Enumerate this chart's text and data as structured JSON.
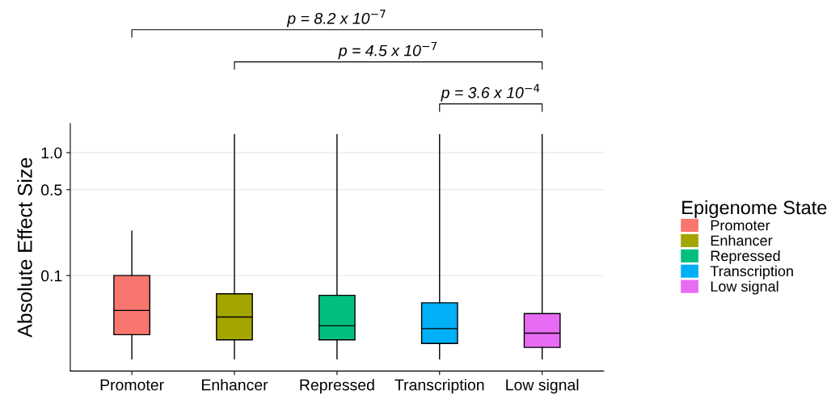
{
  "chart_data": {
    "type": "box",
    "ylabel": "Absolute Effect Size",
    "legend_title": "Epigenome State",
    "legend": "right",
    "log": "y",
    "grid": "y",
    "categories": [
      "Promoter",
      "Enhancer",
      "Repressed",
      "Transcription",
      "Low signal"
    ],
    "series": [
      {
        "name": "Promoter",
        "color": "#f8766d",
        "boxes": [
          {
            "low": 0.021,
            "q1": 0.033,
            "median": 0.052,
            "q3": 0.1,
            "high": 0.23
          },
          null,
          null,
          null,
          null
        ]
      },
      {
        "name": "Enhancer",
        "color": "#a3a500",
        "boxes": [
          null,
          {
            "low": 0.021,
            "q1": 0.03,
            "median": 0.046,
            "q3": 0.071,
            "high": 1.4
          },
          null,
          null,
          null
        ]
      },
      {
        "name": "Repressed",
        "color": "#00bf7d",
        "boxes": [
          null,
          null,
          {
            "low": 0.021,
            "q1": 0.03,
            "median": 0.039,
            "q3": 0.069,
            "high": 1.4
          },
          null,
          null
        ]
      },
      {
        "name": "Transcription",
        "color": "#00b0f6",
        "boxes": [
          null,
          null,
          null,
          {
            "low": 0.021,
            "q1": 0.028,
            "median": 0.037,
            "q3": 0.06,
            "high": 1.4
          },
          null
        ]
      },
      {
        "name": "Low signal",
        "color": "#e76bf3",
        "boxes": [
          null,
          null,
          null,
          null,
          {
            "low": 0.021,
            "q1": 0.026,
            "median": 0.034,
            "q3": 0.049,
            "high": 1.4
          }
        ]
      }
    ],
    "ylim": [
      0.0167,
      1.72
    ],
    "yticks": [
      0.1,
      0.5,
      {
        "value": 1.0,
        "label": "1.0"
      }
    ],
    "annotations": [
      "p = 8.2 x 10$^{−7}$",
      "p = 4.5 x 10$^{−7}$",
      "p = 3.6 x 10$^{−4}$"
    ]
  }
}
